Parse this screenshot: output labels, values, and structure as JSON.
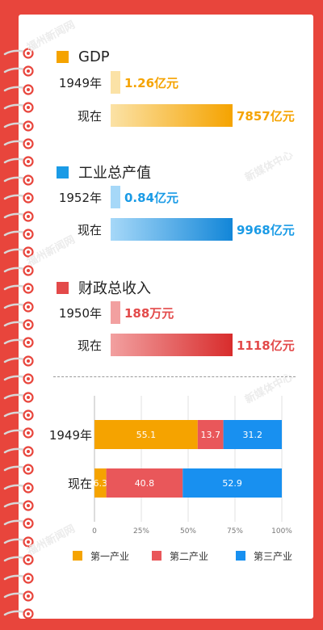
{
  "colors": {
    "background": "#e8453c",
    "gdp": "#f5a300",
    "industry": "#1a9be6",
    "fiscal": "#e34a4a",
    "primary": "#f5a300",
    "secondary": "#e9575a",
    "tertiary": "#1890f0"
  },
  "watermarks": {
    "fzxw": "福州新闻网",
    "media_center": "新媒体中心"
  },
  "sections": [
    {
      "title": "GDP",
      "color": "#f5a300",
      "rows": [
        {
          "label": "1949年",
          "value_label": "1.26亿元",
          "value": 1.26,
          "unit": "亿元"
        },
        {
          "label": "现在",
          "value_label": "7857亿元",
          "value": 7857,
          "unit": "亿元"
        }
      ]
    },
    {
      "title": "工业总产值",
      "color": "#1a9be6",
      "rows": [
        {
          "label": "1952年",
          "value_label": "0.84亿元",
          "value": 0.84,
          "unit": "亿元"
        },
        {
          "label": "现在",
          "value_label": "9968亿元",
          "value": 9968,
          "unit": "亿元"
        }
      ]
    },
    {
      "title": "财政总收入",
      "color": "#e34a4a",
      "rows": [
        {
          "label": "1950年",
          "value_label": "188万元",
          "value": 188,
          "unit": "万元"
        },
        {
          "label": "现在",
          "value_label": "1118亿元",
          "value": 1118,
          "unit": "亿元"
        }
      ]
    }
  ],
  "chart_data": [
    {
      "type": "bar",
      "orientation": "horizontal",
      "title": "GDP",
      "categories": [
        "1949年",
        "现在"
      ],
      "values": [
        1.26,
        7857
      ],
      "value_labels": [
        "1.26亿元",
        "7857亿元"
      ],
      "unit": "亿元"
    },
    {
      "type": "bar",
      "orientation": "horizontal",
      "title": "工业总产值",
      "categories": [
        "1952年",
        "现在"
      ],
      "values": [
        0.84,
        9968
      ],
      "value_labels": [
        "0.84亿元",
        "9968亿元"
      ],
      "unit": "亿元"
    },
    {
      "type": "bar",
      "orientation": "horizontal",
      "title": "财政总收入",
      "categories": [
        "1950年",
        "现在"
      ],
      "values": [
        188,
        11180000
      ],
      "value_labels": [
        "188万元",
        "1118亿元"
      ],
      "unit": "万元"
    },
    {
      "type": "bar",
      "orientation": "horizontal",
      "stacked": true,
      "percent": true,
      "categories": [
        "1949年",
        "现在"
      ],
      "series": [
        {
          "name": "第一产业",
          "values": [
            55.1,
            6.3
          ],
          "color": "#f5a300"
        },
        {
          "name": "第二产业",
          "values": [
            13.7,
            40.8
          ],
          "color": "#e9575a"
        },
        {
          "name": "第三产业",
          "values": [
            31.2,
            52.9
          ],
          "color": "#1890f0"
        }
      ],
      "xlim": [
        0,
        100
      ],
      "xticks": [
        "0",
        "25%",
        "50%",
        "75%",
        "100%"
      ],
      "grid": true,
      "legend": "bottom"
    }
  ]
}
